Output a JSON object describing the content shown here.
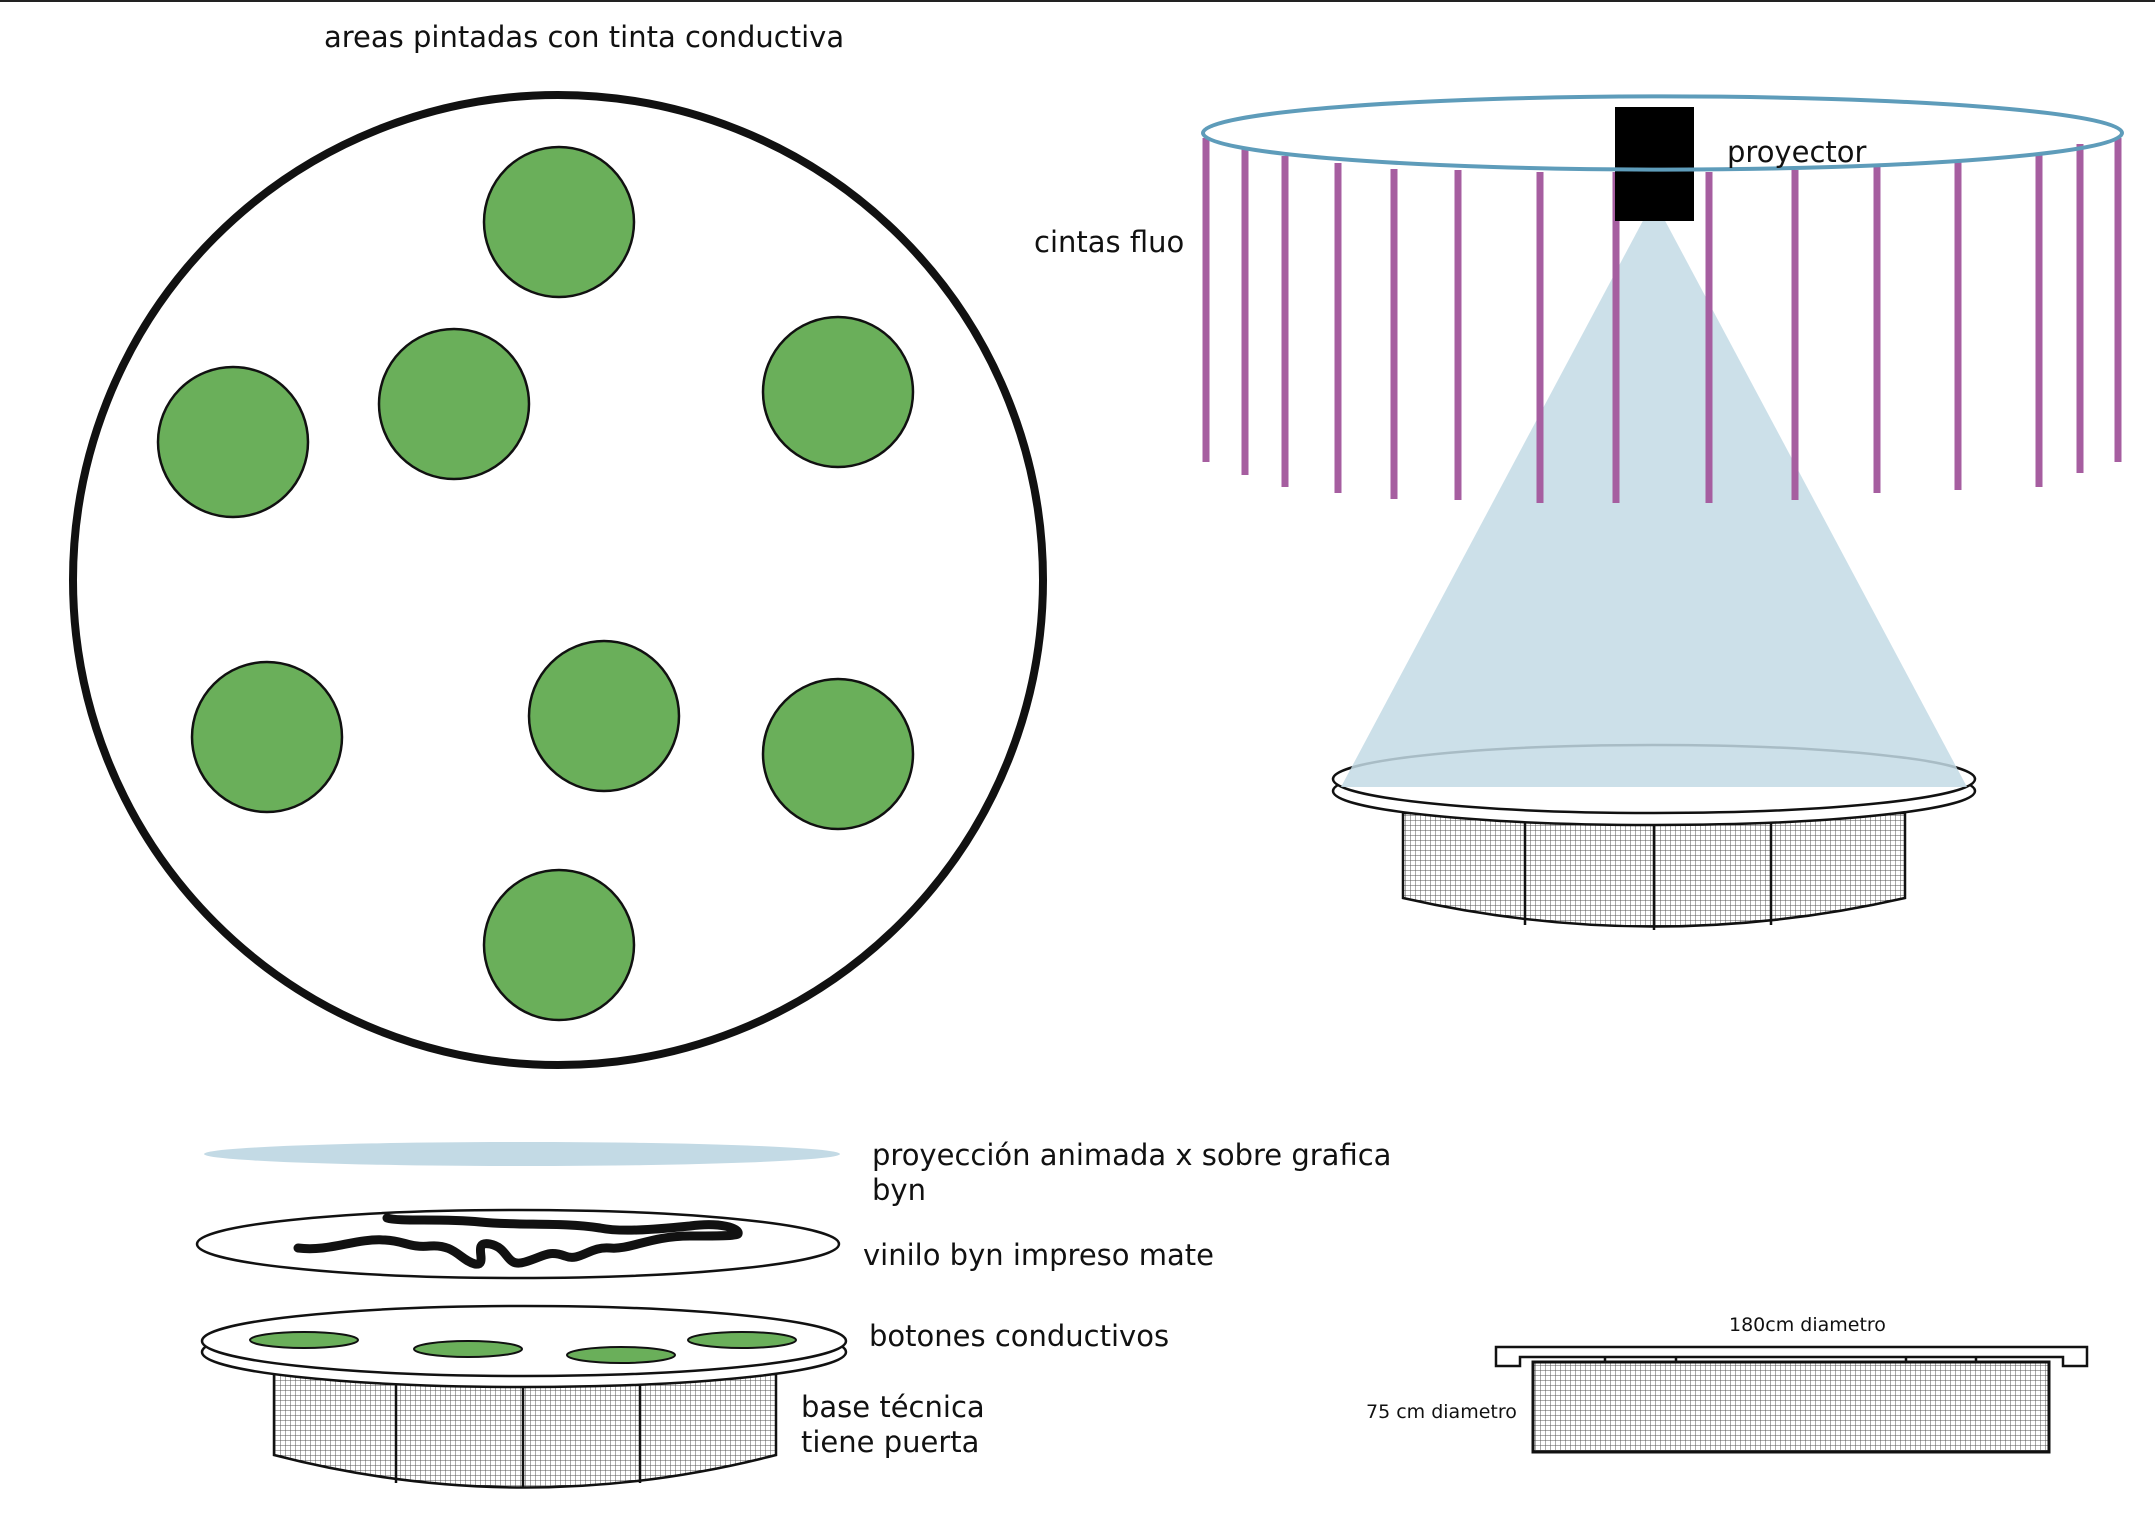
{
  "labels": {
    "top_circle": "areas pintadas con tinta conductiva",
    "ribbons": "cintas fluo",
    "projector": "proyector",
    "layer_projection_1": "proyección animada x sobre grafica",
    "layer_projection_2": "byn",
    "layer_vinyl": "vinilo byn impreso mate",
    "layer_buttons": "botones conductivos",
    "layer_base_1": "base técnica",
    "layer_base_2": "tiene puerta",
    "dim_top": "180cm diametro",
    "dim_base": "75 cm diametro"
  },
  "colors": {
    "green_button": "#6aaf5a",
    "projection_light": "#c3dae5",
    "ring": "#5e9cba",
    "ribbon": "#a65ea0",
    "projector_body": "#000000",
    "outline": "#111111"
  },
  "icons": {
    "base_pattern": "mesh-grid-pattern"
  }
}
